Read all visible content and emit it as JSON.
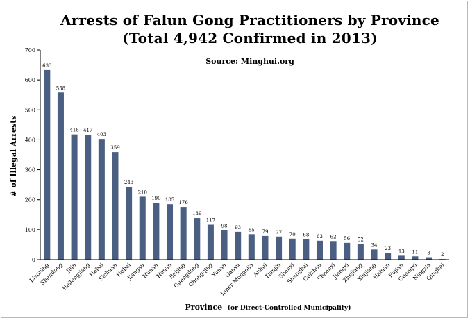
{
  "chart_data": {
    "type": "bar",
    "title_line1": "Arrests of Falun Gong Practitioners by Province",
    "title_line2": "(Total 4,942 Confirmed in 2013)",
    "subtitle": "Source: Minghui.org",
    "ylabel": "# of Illegal Arrests",
    "xlabel_main": "Province",
    "xlabel_note": "(or Direct-Controlled Municipality)",
    "ylim": [
      0,
      700
    ],
    "yticks": [
      "0",
      "100",
      "200",
      "300",
      "400",
      "500",
      "600",
      "700"
    ],
    "grid": false,
    "bar_color": "#4b5f82",
    "categories": [
      "Liaoning",
      "Shandong",
      "Jilin",
      "Heilongjiang",
      "Hebei",
      "Sichuan",
      "Hubei",
      "Jiangsu",
      "Hunan",
      "Henan",
      "Beijing",
      "Guangdong",
      "Chongqing",
      "Yunan",
      "Gansu",
      "Inner Mongolia",
      "Anhui",
      "Tianjin",
      "Shanxi",
      "Shanghai",
      "Guizhou",
      "Shaanxi",
      "Jiangxi",
      "Zhejiang",
      "Xinjiang",
      "Hainan",
      "Fujian",
      "Guangxi",
      "Ningxia",
      "Qinghai"
    ],
    "values": [
      633,
      558,
      418,
      417,
      403,
      359,
      243,
      210,
      190,
      185,
      176,
      139,
      117,
      98,
      93,
      85,
      79,
      77,
      70,
      68,
      63,
      62,
      56,
      52,
      34,
      23,
      13,
      11,
      8,
      2
    ],
    "value_labels": [
      "633",
      "558",
      "418",
      "417",
      "403",
      "359",
      "243",
      "210",
      "190",
      "185",
      "176",
      "139",
      "117",
      "98",
      "93",
      "85",
      "79",
      "77",
      "70",
      "68",
      "63",
      "62",
      "56",
      "52",
      "34",
      "23",
      "13",
      "11",
      "8",
      "2"
    ]
  }
}
